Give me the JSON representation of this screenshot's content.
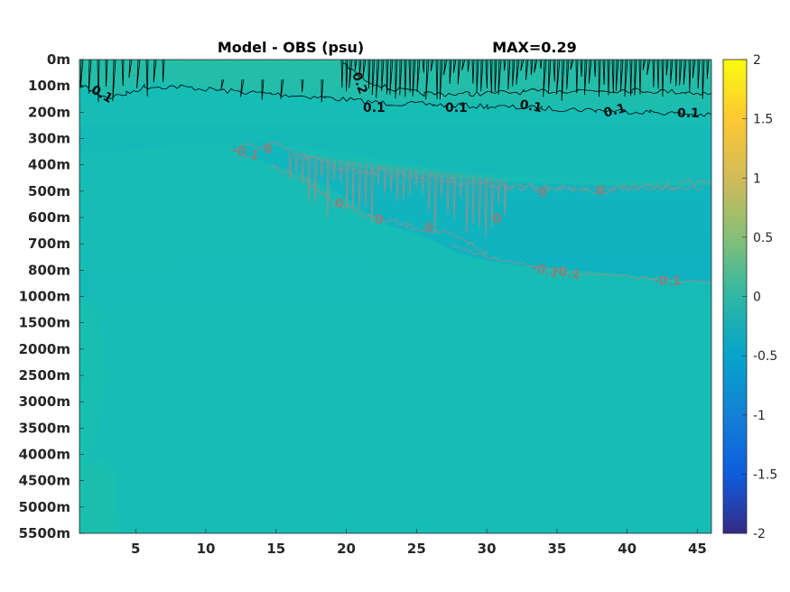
{
  "chart_data": {
    "type": "heatmap",
    "title": "Model - OBS (psu)",
    "subtitle": "MAX=0.29",
    "y_ticks": [
      "0m",
      "100m",
      "200m",
      "300m",
      "400m",
      "500m",
      "600m",
      "700m",
      "800m",
      "1000m",
      "1500m",
      "2000m",
      "2500m",
      "3000m",
      "3500m",
      "4000m",
      "4500m",
      "5000m",
      "5500m"
    ],
    "x_ticks": [
      5,
      10,
      15,
      20,
      25,
      30,
      35,
      40,
      45
    ],
    "xlim": [
      1,
      46
    ],
    "colorbar": {
      "ticks": [
        2,
        1.5,
        1,
        0.5,
        0,
        -0.5,
        -1,
        -1.5,
        -2
      ],
      "clim": [
        -2,
        2
      ],
      "colormap": "parula"
    },
    "field_color": "#16bdb4",
    "contour_levels": [
      {
        "level": 0.1,
        "color": "#000000"
      },
      {
        "level": 0.2,
        "color": "#000000"
      },
      {
        "level": 0,
        "color": "#8a7f7c"
      },
      {
        "level": -0.1,
        "color": "#8a7f7c"
      }
    ],
    "contour_labels": {
      "black": [
        "0.1",
        "0.2",
        "0.1",
        "0.1",
        "0.1",
        "0.1",
        "0.1"
      ],
      "gray": [
        "-0.1",
        "0",
        "0",
        "0",
        "0",
        "0",
        "0",
        "0",
        "-0.1",
        "-0.1",
        "-0.1"
      ]
    }
  }
}
